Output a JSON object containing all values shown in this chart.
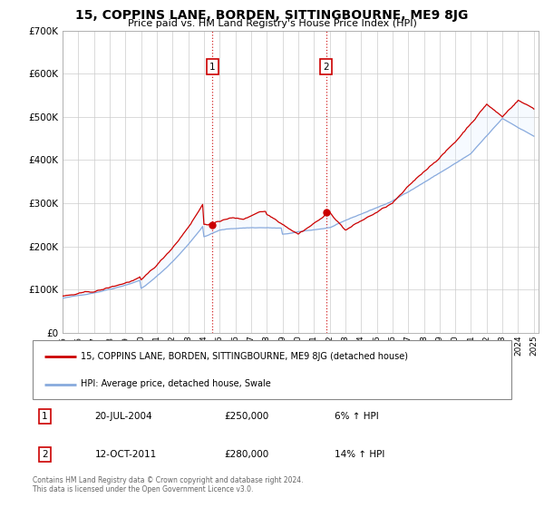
{
  "title": "15, COPPINS LANE, BORDEN, SITTINGBOURNE, ME9 8JG",
  "subtitle": "Price paid vs. HM Land Registry's House Price Index (HPI)",
  "legend_line1": "15, COPPINS LANE, BORDEN, SITTINGBOURNE, ME9 8JG (detached house)",
  "legend_line2": "HPI: Average price, detached house, Swale",
  "sale1_date": "20-JUL-2004",
  "sale1_price": "£250,000",
  "sale1_hpi": "6% ↑ HPI",
  "sale2_date": "12-OCT-2011",
  "sale2_price": "£280,000",
  "sale2_hpi": "14% ↑ HPI",
  "footnote1": "Contains HM Land Registry data © Crown copyright and database right 2024.",
  "footnote2": "This data is licensed under the Open Government Licence v3.0.",
  "red_color": "#cc0000",
  "blue_color": "#88aadd",
  "shade_color": "#ddeeff",
  "ylim": [
    0,
    700000
  ],
  "yticks": [
    0,
    100000,
    200000,
    300000,
    400000,
    500000,
    600000,
    700000
  ],
  "sale1_year": 2004.55,
  "sale1_value": 250000,
  "sale2_year": 2011.79,
  "sale2_value": 280000
}
